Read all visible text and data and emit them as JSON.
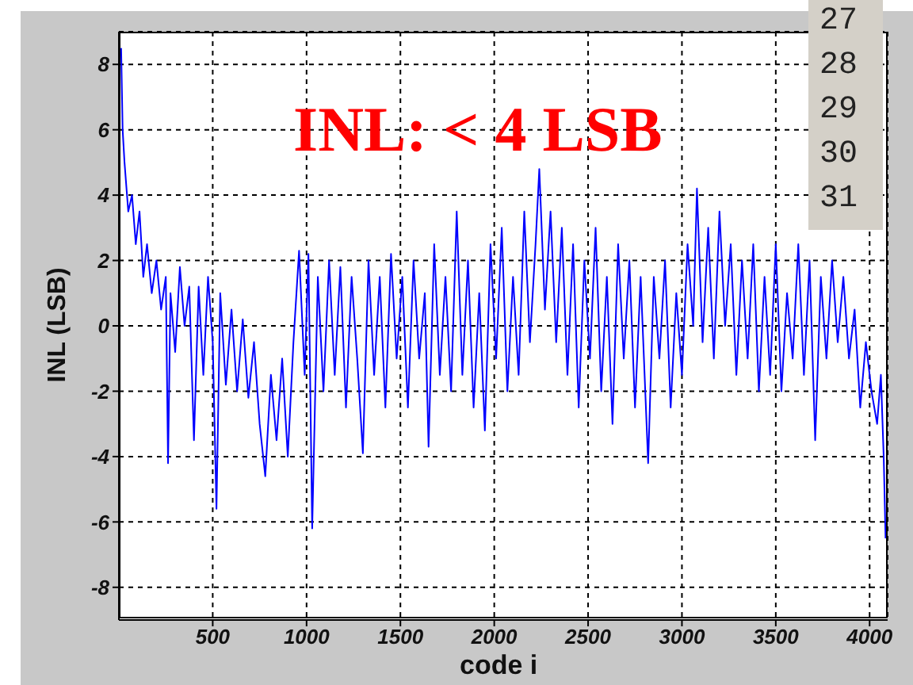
{
  "chart_data": {
    "type": "line",
    "xlabel": "code i",
    "ylabel": "INL (LSB)",
    "annotations": [
      "INL: < 4 LSB",
      "27",
      "28",
      "29",
      "30",
      "31"
    ],
    "xlim": [
      0,
      4096
    ],
    "xticks": [
      500,
      1000,
      1500,
      2000,
      2500,
      3000,
      3500,
      4000
    ],
    "ylim": [
      -9,
      9
    ],
    "yticks": [
      -8,
      -6,
      -4,
      -2,
      0,
      2,
      4,
      6,
      8
    ],
    "grid": true,
    "series": [
      {
        "color": "#0000ff",
        "x": [
          12,
          20,
          30,
          50,
          70,
          90,
          110,
          130,
          150,
          175,
          200,
          225,
          250,
          262,
          275,
          300,
          325,
          350,
          375,
          400,
          425,
          450,
          475,
          500,
          520,
          540,
          570,
          600,
          630,
          660,
          690,
          720,
          750,
          780,
          810,
          840,
          870,
          900,
          930,
          960,
          990,
          1010,
          1030,
          1060,
          1090,
          1120,
          1150,
          1180,
          1210,
          1240,
          1270,
          1300,
          1330,
          1360,
          1390,
          1420,
          1450,
          1480,
          1510,
          1540,
          1570,
          1600,
          1630,
          1650,
          1680,
          1710,
          1740,
          1770,
          1800,
          1830,
          1860,
          1890,
          1920,
          1950,
          1980,
          2010,
          2040,
          2070,
          2100,
          2130,
          2160,
          2190,
          2220,
          2240,
          2270,
          2300,
          2330,
          2360,
          2390,
          2420,
          2450,
          2480,
          2510,
          2540,
          2570,
          2600,
          2630,
          2660,
          2690,
          2720,
          2750,
          2780,
          2820,
          2850,
          2880,
          2910,
          2940,
          2970,
          3000,
          3030,
          3060,
          3080,
          3110,
          3140,
          3170,
          3200,
          3230,
          3260,
          3290,
          3320,
          3350,
          3380,
          3410,
          3440,
          3470,
          3500,
          3530,
          3560,
          3590,
          3620,
          3650,
          3680,
          3710,
          3740,
          3770,
          3800,
          3830,
          3860,
          3890,
          3920,
          3950,
          3980,
          4010,
          4040,
          4060,
          4075,
          4085
        ],
        "values": [
          8.5,
          6,
          5,
          3.5,
          4,
          2.5,
          3.5,
          1.5,
          2.5,
          1,
          2,
          0.5,
          1.5,
          -4.2,
          1,
          -0.8,
          1.8,
          0,
          1.2,
          -3.5,
          1.2,
          -1.5,
          1.5,
          -0.5,
          -5.6,
          1,
          -1.8,
          0.5,
          -2,
          0.2,
          -2.2,
          -0.5,
          -3,
          -4.6,
          -1.5,
          -3.5,
          -1,
          -4,
          -0.5,
          2.3,
          -1.5,
          2.2,
          -6.2,
          1.5,
          -2,
          2,
          -1.5,
          1.8,
          -2.5,
          1.5,
          -1,
          -3.9,
          2,
          -1.5,
          1.5,
          -2.5,
          2.2,
          -1,
          1.5,
          -2.5,
          2,
          -1,
          1,
          -3.7,
          2.5,
          -1.5,
          1.5,
          -2,
          3.5,
          -1.5,
          2,
          -2.5,
          1,
          -3.2,
          2.5,
          -1,
          3,
          -2,
          1.5,
          -1.5,
          3.5,
          -0.5,
          2.5,
          4.8,
          0.5,
          3.5,
          -0.5,
          3,
          -1.5,
          2.5,
          -2.5,
          2,
          -1,
          3,
          -2,
          1.5,
          -3,
          2.5,
          -1,
          2,
          -2.5,
          1.5,
          -4.2,
          1.5,
          -1,
          2,
          -2.5,
          1,
          -1.5,
          2.5,
          0,
          4.2,
          -0.5,
          3,
          -1,
          3.5,
          0,
          2.5,
          -1.5,
          2,
          -1,
          2.5,
          -2,
          1.5,
          -1.5,
          2.5,
          -2,
          1,
          -1,
          2.5,
          -1.5,
          2,
          -3.5,
          1.5,
          -1,
          2,
          -0.5,
          1.5,
          -1,
          0.5,
          -2.5,
          -0.5,
          -2,
          -3,
          -1.5,
          -4,
          -6.5
        ]
      }
    ]
  }
}
